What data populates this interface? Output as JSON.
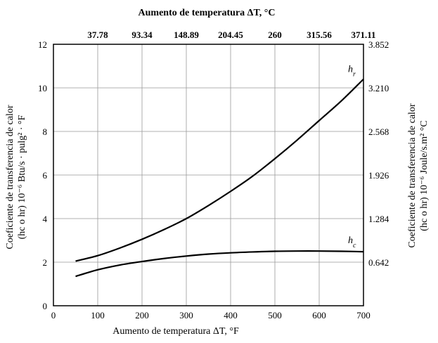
{
  "chart_data": {
    "type": "line",
    "title": "Aumento de temperatura ΔT, °C",
    "xlabel": "Aumento de temperatura ΔT, °F",
    "ylabel_left": [
      "Coeficiente de transferencia de calor",
      "(hc o hr) 10⁻⁶ Btu/s · pulg² · °F"
    ],
    "ylabel_right": [
      "Coeficiente de transferencia de calor",
      "(hc o hr) 10⁻⁶ Joule/s.m² °C"
    ],
    "xlim": [
      0,
      700
    ],
    "ylim": [
      0,
      12
    ],
    "x_ticks": [
      0,
      100,
      200,
      300,
      400,
      500,
      600,
      700
    ],
    "y_ticks": [
      0,
      2,
      4,
      6,
      8,
      10,
      12
    ],
    "top_ticks": [
      {
        "x": 100,
        "label": "37.78"
      },
      {
        "x": 200,
        "label": "93.34"
      },
      {
        "x": 300,
        "label": "148.89"
      },
      {
        "x": 400,
        "label": "204.45"
      },
      {
        "x": 500,
        "label": "260"
      },
      {
        "x": 600,
        "label": "315.56"
      },
      {
        "x": 700,
        "label": "371.11"
      }
    ],
    "right_ticks": [
      {
        "y": 2,
        "label": "0.642"
      },
      {
        "y": 4,
        "label": "1.284"
      },
      {
        "y": 6,
        "label": "1.926"
      },
      {
        "y": 8,
        "label": "2.568"
      },
      {
        "y": 10,
        "label": "3.210"
      },
      {
        "y": 12,
        "label": "3.852"
      }
    ],
    "grid": true,
    "series": [
      {
        "name": "hr",
        "x": [
          50,
          100,
          150,
          200,
          250,
          300,
          350,
          400,
          450,
          500,
          550,
          600,
          650,
          700
        ],
        "y": [
          2.05,
          2.3,
          2.65,
          3.05,
          3.5,
          4.0,
          4.6,
          5.25,
          5.95,
          6.75,
          7.6,
          8.5,
          9.4,
          10.4
        ]
      },
      {
        "name": "hc",
        "x": [
          50,
          100,
          150,
          200,
          250,
          300,
          350,
          400,
          450,
          500,
          550,
          600,
          650,
          700
        ],
        "y": [
          1.35,
          1.65,
          1.87,
          2.03,
          2.17,
          2.28,
          2.37,
          2.43,
          2.47,
          2.5,
          2.51,
          2.51,
          2.5,
          2.48
        ]
      }
    ]
  }
}
